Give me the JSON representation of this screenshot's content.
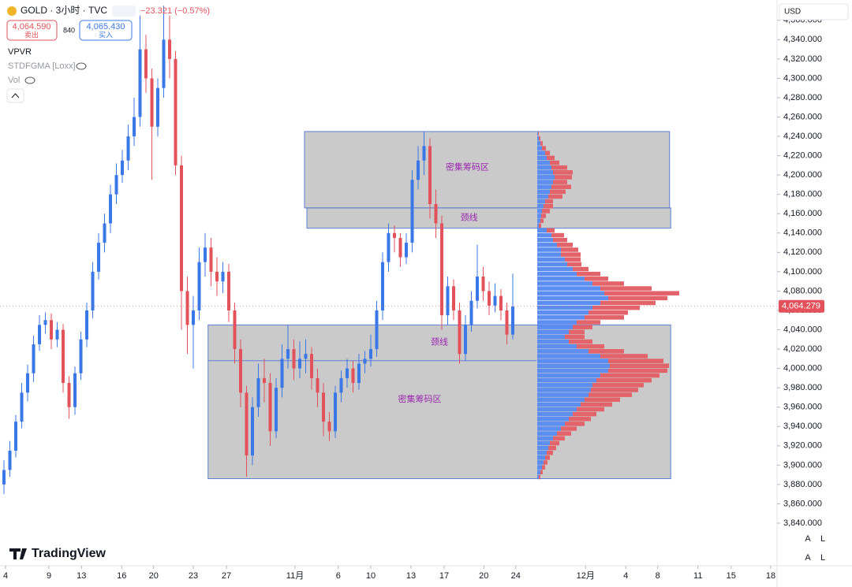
{
  "header": {
    "symbol": "GOLD · 3小时 · TVC",
    "change": "−23.321 (−0.57%)",
    "sell_price": "4,064.590",
    "sell_label": "卖出",
    "spread": "840",
    "buy_price": "4,065.430",
    "buy_label": "买入",
    "indicators": [
      "VPVR",
      "STDFGMA [Loxx]",
      "Vol"
    ],
    "currency": "USD",
    "logo": "TradingView",
    "buttons": [
      "A",
      "L",
      "A",
      "L"
    ]
  },
  "chart_data": {
    "type": "candlestick",
    "up_color": "#3b78e7",
    "down_color": "#e3525b",
    "ylim": [
      3796,
      4381
    ],
    "yticks": [
      {
        "value": 3840,
        "label": "3,840.000"
      },
      {
        "value": 3860,
        "label": "3,860.000"
      },
      {
        "value": 3880,
        "label": "3,880.000"
      },
      {
        "value": 3900,
        "label": "3,900.000"
      },
      {
        "value": 3920,
        "label": "3,920.000"
      },
      {
        "value": 3940,
        "label": "3,940.000"
      },
      {
        "value": 3960,
        "label": "3,960.000"
      },
      {
        "value": 3980,
        "label": "3,980.000"
      },
      {
        "value": 4000,
        "label": "4,000.000"
      },
      {
        "value": 4020,
        "label": "4,020.000"
      },
      {
        "value": 4040,
        "label": "4,040.000"
      },
      {
        "value": 4060,
        "label": "4,060.000"
      },
      {
        "value": 4080,
        "label": "4,080.000"
      },
      {
        "value": 4100,
        "label": "4,100.000"
      },
      {
        "value": 4120,
        "label": "4,120.000"
      },
      {
        "value": 4140,
        "label": "4,140.000"
      },
      {
        "value": 4160,
        "label": "4,160.000"
      },
      {
        "value": 4180,
        "label": "4,180.000"
      },
      {
        "value": 4200,
        "label": "4,200.000"
      },
      {
        "value": 4220,
        "label": "4,220.000"
      },
      {
        "value": 4240,
        "label": "4,240.000"
      },
      {
        "value": 4260,
        "label": "4,260.000"
      },
      {
        "value": 4280,
        "label": "4,280.000"
      },
      {
        "value": 4300,
        "label": "4,300.000"
      },
      {
        "value": 4320,
        "label": "4,320.000"
      },
      {
        "value": 4340,
        "label": "4,340.000"
      },
      {
        "value": 4360,
        "label": "4,360.000"
      }
    ],
    "xlim": [
      -0.67,
      130.67
    ],
    "xticks": [
      {
        "value": 0.27,
        "label": "4"
      },
      {
        "value": 7.6,
        "label": "9"
      },
      {
        "value": 13.1,
        "label": "13"
      },
      {
        "value": 19.9,
        "label": "16"
      },
      {
        "value": 25.3,
        "label": "20"
      },
      {
        "value": 32,
        "label": "23"
      },
      {
        "value": 37.6,
        "label": "27"
      },
      {
        "value": 49.2,
        "label": "11月"
      },
      {
        "value": 56.5,
        "label": "6"
      },
      {
        "value": 62,
        "label": "10"
      },
      {
        "value": 68.8,
        "label": "13"
      },
      {
        "value": 74.4,
        "label": "17"
      },
      {
        "value": 81.1,
        "label": "20"
      },
      {
        "value": 86.5,
        "label": "24"
      },
      {
        "value": 98.3,
        "label": "12月"
      },
      {
        "value": 105.1,
        "label": "4"
      },
      {
        "value": 110.5,
        "label": "8"
      },
      {
        "value": 117.3,
        "label": "11"
      },
      {
        "value": 122.9,
        "label": "15"
      },
      {
        "value": 129.6,
        "label": "18"
      }
    ],
    "open": [
      3880,
      3895,
      3915,
      3945,
      3975,
      3995,
      4025,
      4045,
      4050,
      4030,
      4040,
      3985,
      3960,
      3995,
      4030,
      4060,
      4100,
      4130,
      4150,
      4180,
      4200,
      4215,
      4240,
      4260,
      4330,
      4300,
      4250,
      4290,
      4340,
      4320,
      4210,
      4080,
      4045,
      4060,
      4110,
      4125,
      4100,
      4090,
      4100,
      4060,
      4020,
      3975,
      3910,
      3960,
      3990,
      3985,
      3935,
      3980,
      4010,
      4020,
      4000,
      4010,
      4015,
      3990,
      3975,
      3945,
      3935,
      3975,
      3990,
      4000,
      3985,
      4005,
      4010,
      4020,
      4060,
      4110,
      4140,
      4135,
      4115,
      4130,
      4195,
      4215,
      4230,
      4170,
      4150,
      4055,
      4085,
      4060,
      4015,
      4045,
      4070,
      4095,
      4080,
      4065,
      4075,
      4060,
      4035
    ],
    "high": [
      3905,
      3925,
      3952,
      3985,
      4004,
      4034,
      4055,
      4058,
      4057,
      4048,
      4046,
      3992,
      4002,
      4038,
      4068,
      4110,
      4140,
      4160,
      4190,
      4212,
      4226,
      4252,
      4280,
      4365,
      4345,
      4310,
      4300,
      4375,
      4365,
      4328,
      4220,
      4095,
      4075,
      4125,
      4140,
      4135,
      4115,
      4110,
      4108,
      4068,
      4030,
      3982,
      3970,
      4005,
      4010,
      3995,
      3990,
      4025,
      4045,
      4030,
      4028,
      4030,
      4022,
      4000,
      3985,
      3955,
      3982,
      3998,
      4010,
      4008,
      4015,
      4018,
      4035,
      4070,
      4120,
      4150,
      4148,
      4140,
      4140,
      4205,
      4230,
      4245,
      4238,
      4185,
      4158,
      4095,
      4092,
      4068,
      4055,
      4080,
      4128,
      4105,
      4090,
      4088,
      4082,
      4068,
      4098
    ],
    "low": [
      3870,
      3888,
      3908,
      3938,
      3966,
      3986,
      4018,
      4036,
      4020,
      4022,
      3975,
      3948,
      3952,
      3988,
      4022,
      4052,
      4092,
      4120,
      4140,
      4170,
      4192,
      4205,
      4230,
      4250,
      4285,
      4195,
      4240,
      4280,
      4300,
      4200,
      4040,
      4015,
      4000,
      4050,
      4095,
      4085,
      4075,
      4078,
      4048,
      4005,
      3960,
      3888,
      3900,
      3950,
      3965,
      3920,
      3928,
      3970,
      4000,
      3988,
      3990,
      3995,
      3978,
      3960,
      3930,
      3925,
      3928,
      3965,
      3980,
      3975,
      3978,
      3995,
      4002,
      4012,
      4050,
      4100,
      4120,
      4105,
      4108,
      4120,
      4185,
      4200,
      4155,
      4135,
      4040,
      4045,
      4050,
      4005,
      4008,
      4038,
      4062,
      4070,
      4055,
      4058,
      4050,
      4025,
      4030
    ],
    "close": [
      3895,
      3915,
      3945,
      3975,
      3995,
      4025,
      4045,
      4050,
      4030,
      4040,
      3985,
      3960,
      3995,
      4030,
      4060,
      4100,
      4130,
      4150,
      4180,
      4200,
      4215,
      4240,
      4260,
      4330,
      4300,
      4250,
      4290,
      4340,
      4320,
      4210,
      4080,
      4045,
      4060,
      4110,
      4125,
      4100,
      4090,
      4100,
      4060,
      4020,
      3975,
      3910,
      3960,
      3990,
      3985,
      3935,
      3980,
      4010,
      4020,
      4000,
      4010,
      4015,
      3990,
      3975,
      3945,
      3935,
      3975,
      3990,
      4000,
      3985,
      4005,
      4010,
      4020,
      4060,
      4110,
      4140,
      4135,
      4115,
      4130,
      4195,
      4215,
      4230,
      4170,
      4150,
      4055,
      4085,
      4060,
      4015,
      4045,
      4070,
      4095,
      4080,
      4065,
      4075,
      4060,
      4035,
      4064
    ],
    "last_price": {
      "value": 4064.279,
      "label": "4,064.279"
    },
    "profile": {
      "buy_color": "#5b8ef0",
      "sell_color": "#e3636a",
      "prices": [
        3885,
        3890,
        3895,
        3900,
        3905,
        3910,
        3915,
        3920,
        3925,
        3930,
        3935,
        3940,
        3945,
        3950,
        3955,
        3960,
        3965,
        3970,
        3975,
        3980,
        3985,
        3990,
        3995,
        4000,
        4005,
        4010,
        4015,
        4020,
        4025,
        4030,
        4035,
        4040,
        4045,
        4050,
        4055,
        4060,
        4065,
        4070,
        4075,
        4080,
        4085,
        4090,
        4095,
        4100,
        4105,
        4110,
        4115,
        4120,
        4125,
        4130,
        4135,
        4140,
        4145,
        4150,
        4155,
        4160,
        4165,
        4170,
        4175,
        4180,
        4185,
        4190,
        4195,
        4200,
        4205,
        4210,
        4215,
        4220,
        4225,
        4230,
        4235,
        4240
      ],
      "buy": [
        2,
        4,
        6,
        8,
        10,
        12,
        14,
        16,
        20,
        25,
        30,
        35,
        40,
        45,
        50,
        55,
        60,
        65,
        68,
        70,
        75,
        80,
        90,
        92,
        90,
        80,
        65,
        50,
        40,
        35,
        40,
        45,
        50,
        60,
        65,
        70,
        80,
        90,
        85,
        80,
        70,
        60,
        50,
        45,
        38,
        35,
        30,
        30,
        25,
        20,
        18,
        12,
        2,
        4,
        5,
        6,
        8,
        10,
        14,
        16,
        18,
        20,
        22,
        20,
        18,
        16,
        12,
        10,
        6,
        4,
        2,
        1
      ],
      "sell": [
        2,
        3,
        4,
        5,
        6,
        8,
        10,
        12,
        15,
        18,
        20,
        25,
        28,
        30,
        35,
        40,
        45,
        55,
        60,
        65,
        70,
        75,
        75,
        75,
        70,
        60,
        45,
        35,
        30,
        25,
        20,
        25,
        30,
        50,
        50,
        60,
        70,
        75,
        95,
        65,
        40,
        30,
        30,
        20,
        18,
        20,
        25,
        22,
        20,
        18,
        16,
        10,
        3,
        4,
        6,
        10,
        12,
        10,
        18,
        20,
        25,
        18,
        22,
        25,
        20,
        12,
        10,
        6,
        5,
        3,
        2,
        1
      ]
    },
    "zones": [
      {
        "label": "密集筹码区",
        "top": 4245,
        "bottom": 4166,
        "x": [
          50.8,
          112.5
        ]
      },
      {
        "label": "颈线",
        "top": 4166,
        "bottom": 4145,
        "x": [
          51.2,
          112.7
        ]
      },
      {
        "label": "密集筹码区",
        "top": 4045,
        "bottom": 3886,
        "x": [
          34.5,
          112.7
        ]
      }
    ],
    "neckline": {
      "label": "颈线",
      "price": 4008,
      "x": [
        34.5,
        90
      ]
    }
  }
}
